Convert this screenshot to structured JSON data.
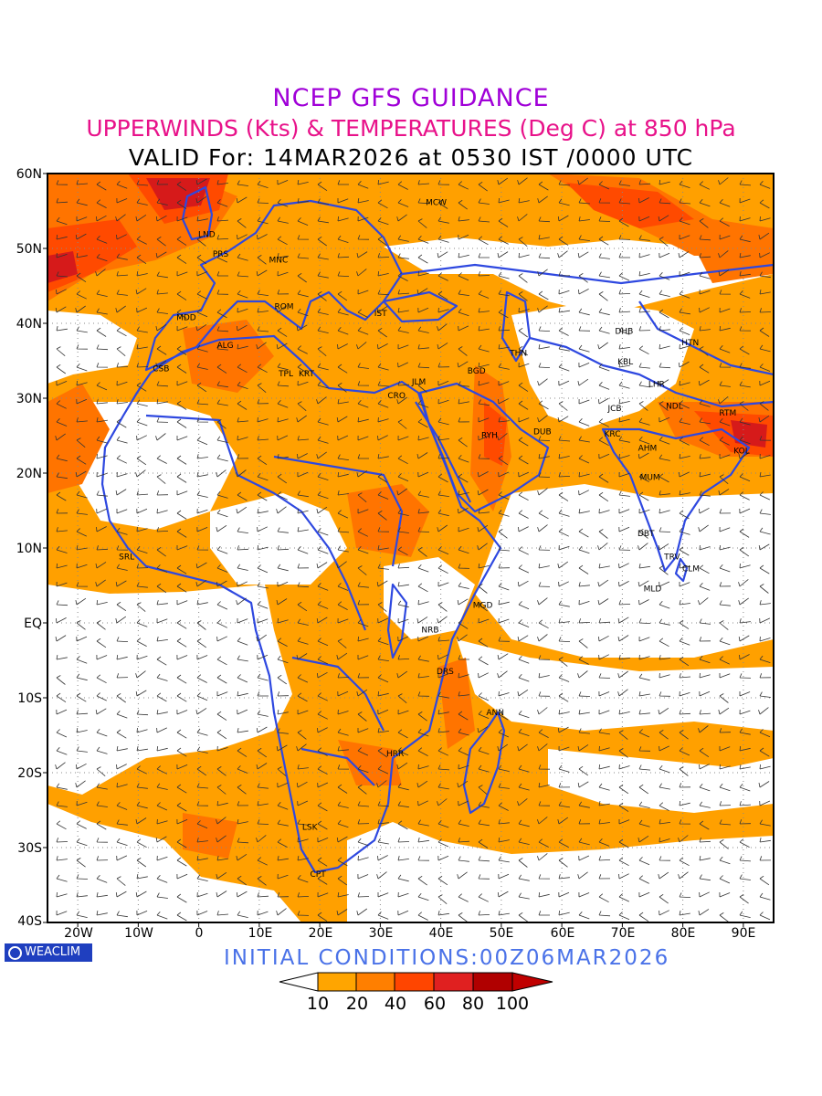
{
  "title": {
    "line1": "NCEP GFS GUIDANCE",
    "line2": "UPPERWINDS (Kts) & TEMPERATURES (Deg C) at 850 hPa",
    "line3": "VALID For: 14MAR2026 at 0530 IST /0000 UTC"
  },
  "initial_conditions": "INITIAL CONDITIONS:00Z06MAR2026",
  "logo_text": "WEACLIM",
  "axes": {
    "lat_labels": [
      "60N",
      "50N",
      "40N",
      "30N",
      "20N",
      "10N",
      "EQ",
      "10S",
      "20S",
      "30S",
      "40S"
    ],
    "lon_labels": [
      "20W",
      "10W",
      "0",
      "10E",
      "20E",
      "30E",
      "40E",
      "50E",
      "60E",
      "70E",
      "80E",
      "90E"
    ]
  },
  "legend": {
    "labels": [
      "10",
      "20",
      "40",
      "60",
      "80",
      "100"
    ],
    "colors": [
      "#ffffff",
      "#ffa500",
      "#ff7f00",
      "#ff4500",
      "#e02020",
      "#b00000",
      "#c00000"
    ]
  },
  "stations": [
    {
      "code": "MCW",
      "lon": 37.5,
      "lat": 55.8
    },
    {
      "code": "LND",
      "lon": -0.1,
      "lat": 51.5
    },
    {
      "code": "PRS",
      "lon": 2.3,
      "lat": 48.9
    },
    {
      "code": "MNC",
      "lon": 11.6,
      "lat": 48.1
    },
    {
      "code": "ROM",
      "lon": 12.5,
      "lat": 41.9
    },
    {
      "code": "IST",
      "lon": 29.0,
      "lat": 41.0
    },
    {
      "code": "MDD",
      "lon": -3.7,
      "lat": 40.4
    },
    {
      "code": "ALG",
      "lon": 3.0,
      "lat": 36.7
    },
    {
      "code": "CSB",
      "lon": -7.6,
      "lat": 33.6
    },
    {
      "code": "TPL",
      "lon": 13.2,
      "lat": 32.9
    },
    {
      "code": "KRT",
      "lon": 16.5,
      "lat": 32.9
    },
    {
      "code": "CRO",
      "lon": 31.2,
      "lat": 30.0
    },
    {
      "code": "JLM",
      "lon": 35.2,
      "lat": 31.8
    },
    {
      "code": "BGD",
      "lon": 44.4,
      "lat": 33.3
    },
    {
      "code": "THN",
      "lon": 51.4,
      "lat": 35.7
    },
    {
      "code": "RYH",
      "lon": 46.7,
      "lat": 24.7
    },
    {
      "code": "DUB",
      "lon": 55.3,
      "lat": 25.2
    },
    {
      "code": "DHB",
      "lon": 68.8,
      "lat": 38.6
    },
    {
      "code": "KBL",
      "lon": 69.2,
      "lat": 34.5
    },
    {
      "code": "LHR",
      "lon": 74.3,
      "lat": 31.5
    },
    {
      "code": "HTN",
      "lon": 79.8,
      "lat": 37.1
    },
    {
      "code": "NDL",
      "lon": 77.2,
      "lat": 28.6
    },
    {
      "code": "JCB",
      "lon": 67.6,
      "lat": 28.3
    },
    {
      "code": "KRC",
      "lon": 67.0,
      "lat": 24.9
    },
    {
      "code": "AHM",
      "lon": 72.6,
      "lat": 23.0
    },
    {
      "code": "RTM",
      "lon": 86.0,
      "lat": 27.7
    },
    {
      "code": "KOL",
      "lon": 88.4,
      "lat": 22.6
    },
    {
      "code": "MUM",
      "lon": 72.9,
      "lat": 19.1
    },
    {
      "code": "DBT",
      "lon": 72.5,
      "lat": 11.6
    },
    {
      "code": "TRV",
      "lon": 76.9,
      "lat": 8.5
    },
    {
      "code": "CLM",
      "lon": 79.9,
      "lat": 6.9
    },
    {
      "code": "MLD",
      "lon": 73.5,
      "lat": 4.2
    },
    {
      "code": "SRL",
      "lon": -13.2,
      "lat": 8.5
    },
    {
      "code": "MGD",
      "lon": 45.3,
      "lat": 2.0
    },
    {
      "code": "NRB",
      "lon": 36.8,
      "lat": -1.3
    },
    {
      "code": "DRS",
      "lon": 39.3,
      "lat": -6.8
    },
    {
      "code": "ANN",
      "lon": 47.5,
      "lat": -12.3
    },
    {
      "code": "HRR",
      "lon": 31.0,
      "lat": -17.8
    },
    {
      "code": "LSK",
      "lon": 17.1,
      "lat": -27.6
    },
    {
      "code": "CPT",
      "lon": 18.4,
      "lat": -33.9
    }
  ]
}
